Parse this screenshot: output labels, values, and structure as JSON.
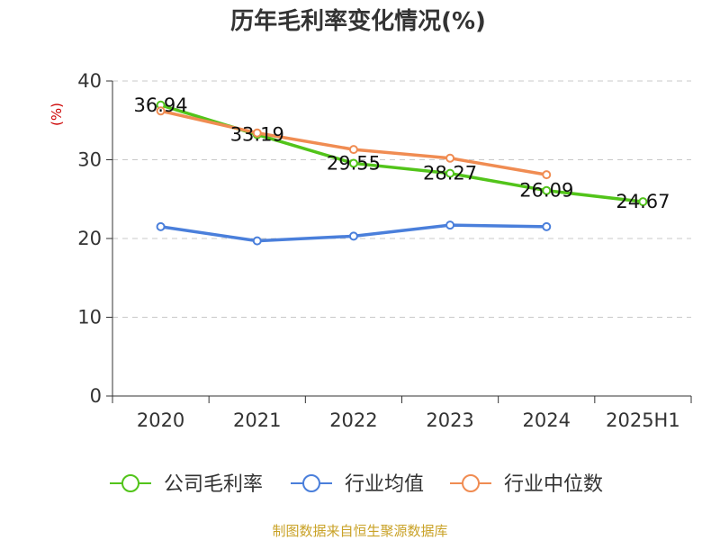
{
  "chart_data": {
    "type": "line",
    "title": "历年毛利率变化情况(%)",
    "ylabel": "(%)",
    "xlabel": "",
    "categories": [
      "2020",
      "2021",
      "2022",
      "2023",
      "2024",
      "2025H1"
    ],
    "ylim": [
      0,
      40
    ],
    "yticks": [
      0,
      10,
      20,
      30,
      40
    ],
    "grid": true,
    "legend_position": "bottom",
    "series": [
      {
        "name": "公司毛利率",
        "color": "#52c41a",
        "values": [
          36.94,
          33.19,
          29.55,
          28.27,
          26.09,
          24.67
        ],
        "data_labels": [
          "36.94",
          "33.19",
          "29.55",
          "28.27",
          "26.09",
          "24.67"
        ]
      },
      {
        "name": "行业均值",
        "color": "#4a7fdb",
        "values": [
          21.5,
          19.7,
          20.3,
          21.7,
          21.5,
          null
        ]
      },
      {
        "name": "行业中位数",
        "color": "#f08c52",
        "values": [
          36.2,
          33.4,
          31.3,
          30.2,
          28.1,
          null
        ]
      }
    ]
  },
  "source": "制图数据来自恒生聚源数据库"
}
